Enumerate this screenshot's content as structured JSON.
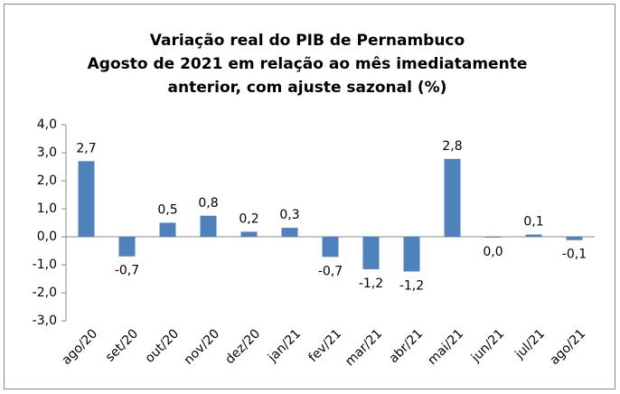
{
  "chart_data": {
    "type": "bar",
    "title": [
      "Variação real do PIB de Pernambuco",
      "Agosto de 2021 em relação ao mês imediatamente",
      "anterior, com ajuste sazonal  (%)"
    ],
    "categories": [
      "ago/20",
      "set/20",
      "out/20",
      "nov/20",
      "dez/20",
      "jan/21",
      "fev/21",
      "mar/21",
      "abr/21",
      "mai/21",
      "jun/21",
      "jul/21",
      "ago/21"
    ],
    "values": [
      2.7,
      -0.7,
      0.5,
      0.75,
      0.18,
      0.32,
      -0.72,
      -1.16,
      -1.24,
      2.78,
      -0.03,
      0.08,
      -0.12
    ],
    "value_labels": [
      "2,7",
      "-0,7",
      "0,5",
      "0,8",
      "0,2",
      "0,3",
      "-0,7",
      "-1,2",
      "-1,2",
      "2,8",
      "0,0",
      "0,1",
      "-0,1"
    ],
    "color": "#4f81bd",
    "ylim": [
      -3,
      4
    ],
    "yticks": [
      {
        "value": -3,
        "label": "-3,0"
      },
      {
        "value": -2,
        "label": "-2,0"
      },
      {
        "value": -1,
        "label": "-1,0"
      },
      {
        "value": 0,
        "label": "0,0"
      },
      {
        "value": 1,
        "label": "1,0"
      },
      {
        "value": 2,
        "label": "2,0"
      },
      {
        "value": 3,
        "label": "3,0"
      },
      {
        "value": 4,
        "label": "4,0"
      }
    ],
    "grid": false
  }
}
